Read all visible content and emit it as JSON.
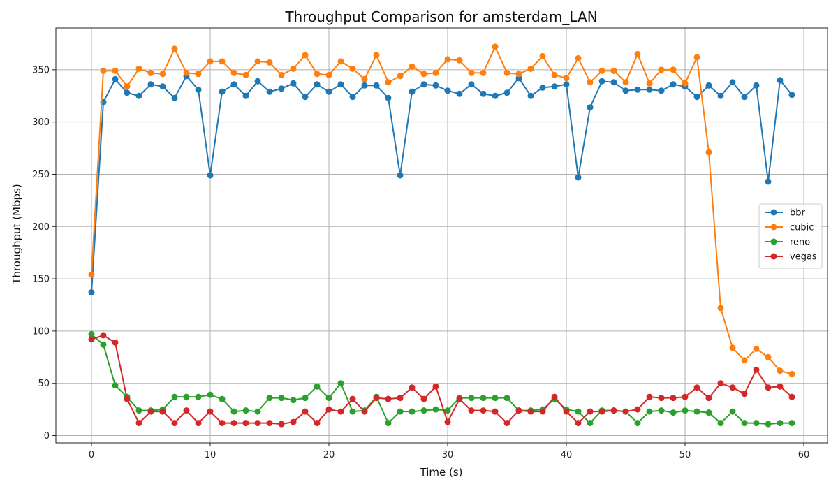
{
  "chart_data": {
    "type": "line",
    "title": "Throughput Comparison for amsterdam_LAN",
    "xlabel": "Time (s)",
    "ylabel": "Throughput (Mbps)",
    "xlim": [
      -3,
      62
    ],
    "ylim": [
      -7,
      390
    ],
    "xticks": [
      0,
      10,
      20,
      30,
      40,
      50,
      60
    ],
    "yticks": [
      0,
      50,
      100,
      150,
      200,
      250,
      300,
      350
    ],
    "grid": true,
    "legend_position": "right",
    "x": [
      0,
      1,
      2,
      3,
      4,
      5,
      6,
      7,
      8,
      9,
      10,
      11,
      12,
      13,
      14,
      15,
      16,
      17,
      18,
      19,
      20,
      21,
      22,
      23,
      24,
      25,
      26,
      27,
      28,
      29,
      30,
      31,
      32,
      33,
      34,
      35,
      36,
      37,
      38,
      39,
      40,
      41,
      42,
      43,
      44,
      45,
      46,
      47,
      48,
      49,
      50,
      51,
      52,
      53,
      54,
      55,
      56,
      57,
      58,
      59
    ],
    "series": [
      {
        "name": "bbr",
        "color": "#1f77b4",
        "values": [
          137,
          319,
          341,
          328,
          325,
          336,
          334,
          323,
          344,
          331,
          249,
          329,
          336,
          325,
          339,
          329,
          332,
          337,
          324,
          336,
          329,
          336,
          324,
          335,
          335,
          323,
          249,
          329,
          336,
          335,
          330,
          327,
          336,
          327,
          325,
          328,
          342,
          325,
          333,
          334,
          336,
          247,
          314,
          339,
          338,
          330,
          331,
          331,
          330,
          336,
          334,
          324,
          335,
          325,
          338,
          324,
          335,
          243,
          340,
          326
        ]
      },
      {
        "name": "cubic",
        "color": "#ff7f0e",
        "values": [
          154,
          349,
          349,
          334,
          351,
          347,
          346,
          370,
          347,
          346,
          358,
          358,
          347,
          345,
          358,
          357,
          345,
          351,
          364,
          346,
          345,
          358,
          351,
          341,
          364,
          338,
          344,
          353,
          346,
          347,
          360,
          359,
          347,
          347,
          372,
          347,
          346,
          351,
          363,
          345,
          342,
          361,
          338,
          349,
          349,
          338,
          365,
          337,
          350,
          350,
          337,
          362,
          271,
          122,
          84,
          72,
          83,
          75,
          62,
          59
        ]
      },
      {
        "name": "reno",
        "color": "#2ca02c",
        "values": [
          97,
          87,
          48,
          37,
          24,
          24,
          25,
          37,
          37,
          37,
          39,
          35,
          23,
          24,
          23,
          36,
          36,
          34,
          36,
          47,
          36,
          50,
          23,
          24,
          37,
          12,
          23,
          23,
          24,
          25,
          24,
          36,
          36,
          36,
          36,
          36,
          24,
          24,
          25,
          35,
          25,
          23,
          12,
          24,
          24,
          23,
          12,
          23,
          24,
          22,
          24,
          23,
          22,
          12,
          23,
          12,
          12,
          11,
          12,
          12
        ]
      },
      {
        "name": "vegas",
        "color": "#d62728",
        "values": [
          92,
          96,
          89,
          35,
          12,
          23,
          23,
          12,
          24,
          12,
          23,
          12,
          12,
          12,
          12,
          12,
          11,
          13,
          23,
          12,
          25,
          23,
          35,
          23,
          36,
          35,
          36,
          46,
          35,
          47,
          13,
          35,
          24,
          24,
          23,
          12,
          24,
          23,
          23,
          37,
          23,
          12,
          23,
          23,
          24,
          23,
          25,
          37,
          36,
          36,
          37,
          46,
          36,
          50,
          46,
          40,
          63,
          46,
          47,
          37
        ]
      }
    ]
  }
}
